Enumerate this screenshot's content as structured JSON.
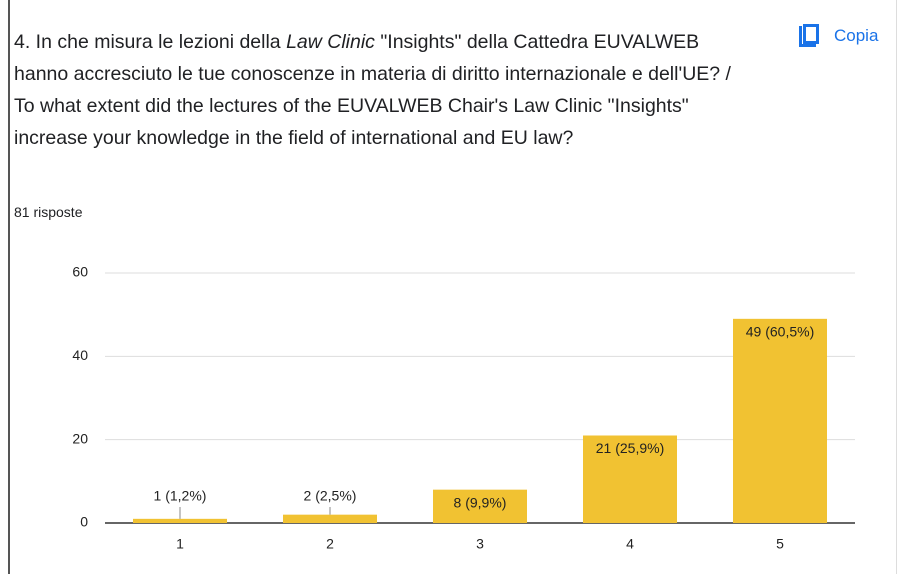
{
  "question": [
    "4. In che misura le lezioni della ",
    "Law Clinic",
    " \"Insights\" della Cattedra EUVALWEB hanno accresciuto le tue conoscenze in materia di diritto internazionale e dell'UE? / To what extent did the lectures of the EUVALWEB Chair's Law Clinic \"Insights\" increase your knowledge in the field of international and EU law?"
  ],
  "copy_button": "Copia",
  "responses": "81 risposte",
  "chart_data": {
    "type": "bar",
    "categories": [
      "1",
      "2",
      "3",
      "4",
      "5"
    ],
    "values": [
      1,
      2,
      8,
      21,
      49
    ],
    "value_labels": [
      "1 (1,2%)",
      "2 (2,5%)",
      "8 (9,9%)",
      "21 (25,9%)",
      "49 (60,5%)"
    ],
    "color": "#f1c232",
    "ylim": [
      0,
      60
    ],
    "yticks": [
      0,
      20,
      40,
      60
    ],
    "grid": true
  }
}
